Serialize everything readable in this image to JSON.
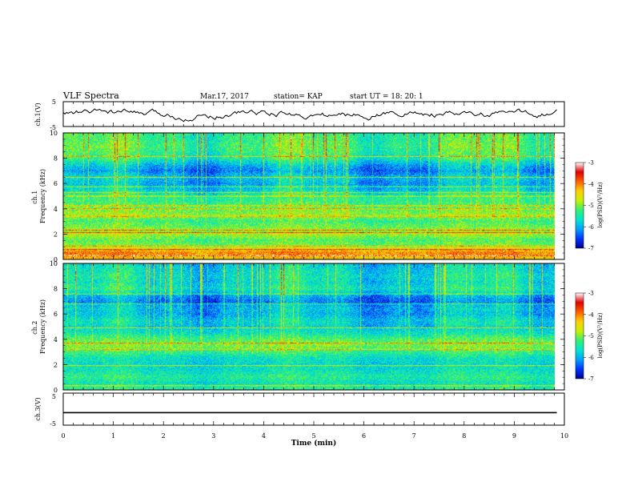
{
  "header": {
    "title": "VLF Spectra",
    "date": "Mar.17, 2017",
    "station": "station= KAP",
    "start": "start UT =  18: 20: 1"
  },
  "x_axis": {
    "label": "Time (min)",
    "range": [
      0,
      10
    ],
    "ticks": [
      "0",
      "1",
      "2",
      "3",
      "4",
      "5",
      "6",
      "7",
      "8",
      "9",
      "10"
    ]
  },
  "colorbar": {
    "label": "log(PSD)(V²/Hz)",
    "range": [
      -7,
      -3
    ],
    "ticks": [
      "-3",
      "-4",
      "-5",
      "-6",
      "-7"
    ],
    "colors": [
      "#00008b",
      "#0033ff",
      "#00a0ff",
      "#00e5d0",
      "#30f070",
      "#c8f000",
      "#ffd000",
      "#ff6000",
      "#e00000",
      "#ffffff"
    ]
  },
  "chart_data": [
    {
      "type": "line",
      "ylabel": "ch.1(V)",
      "ylim": [
        -5,
        5
      ],
      "yticks": [
        "5",
        "-5"
      ],
      "xlim": [
        0,
        9.85
      ],
      "samples": 300,
      "trace_shape": "noisy waveform around 0 V, amplitude ≈ ±2 V",
      "color": "#000000"
    },
    {
      "type": "heatmap",
      "ylabel": "ch.1\nFrequency (kHz)",
      "ylim": [
        0,
        10
      ],
      "yticks": [
        "0",
        "2",
        "4",
        "6",
        "8",
        "10"
      ],
      "xlim": [
        0,
        9.85
      ],
      "value_range": [
        -7,
        -3
      ],
      "profile_freqs_khz": [
        0,
        0.5,
        1.0,
        1.5,
        2.0,
        2.5,
        3.0,
        3.5,
        4.0,
        4.5,
        5.0,
        5.5,
        6.0,
        6.5,
        7.0,
        7.5,
        8.0,
        8.5,
        9.0,
        9.5,
        10.0
      ],
      "profile_log_psd": [
        -4.4,
        -4.0,
        -5.0,
        -5.2,
        -4.8,
        -5.0,
        -5.3,
        -4.9,
        -5.1,
        -5.3,
        -5.4,
        -5.8,
        -6.0,
        -5.8,
        -6.2,
        -5.9,
        -5.4,
        -5.3,
        -5.2,
        -5.3,
        -5.3
      ],
      "lines_khz": [
        0.25,
        0.75,
        1.0,
        2.1,
        2.3,
        3.4,
        4.0,
        4.25,
        5.0,
        5.3,
        5.75,
        6.5,
        8.15
      ]
    },
    {
      "type": "heatmap",
      "ylabel": "ch.2\nFrequency (kHz)",
      "ylim": [
        0,
        10
      ],
      "yticks": [
        "0",
        "2",
        "4",
        "6",
        "8",
        "10"
      ],
      "xlim": [
        0,
        9.85
      ],
      "value_range": [
        -7,
        -3
      ],
      "profile_freqs_khz": [
        0,
        0.5,
        1.0,
        1.5,
        2.0,
        2.5,
        3.0,
        3.5,
        4.0,
        4.5,
        5.0,
        5.5,
        6.0,
        6.5,
        7.0,
        7.5,
        8.0,
        8.5,
        9.0,
        9.5,
        10.0
      ],
      "profile_log_psd": [
        -5.4,
        -5.6,
        -5.4,
        -5.6,
        -5.7,
        -5.6,
        -5.3,
        -5.0,
        -5.2,
        -5.6,
        -5.8,
        -5.7,
        -6.0,
        -5.9,
        -6.3,
        -6.0,
        -5.5,
        -5.7,
        -5.6,
        -5.7,
        -5.8
      ],
      "lines_khz": [
        0.3,
        1.9,
        3.2,
        3.7,
        4.9,
        6.8,
        7.6
      ]
    },
    {
      "type": "line",
      "ylabel": "ch.3(V)",
      "ylim": [
        -5,
        5
      ],
      "yticks": [
        "5",
        "-5"
      ],
      "xlim": [
        0,
        9.85
      ],
      "trace_level_v": [
        -0.9,
        -1.3
      ],
      "color": "#000000"
    }
  ]
}
